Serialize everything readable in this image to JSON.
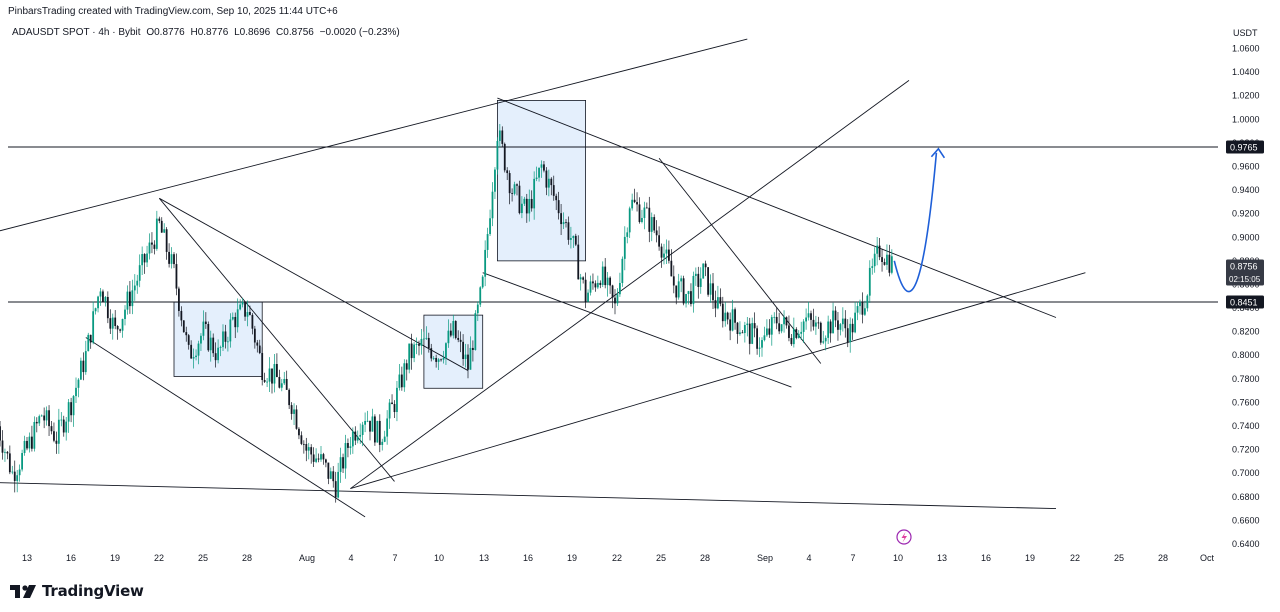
{
  "header": {
    "attribution": "PinbarsTrading created with TradingView.com, Sep 10, 2025 11:44 UTC+6"
  },
  "symbol_info": {
    "title": "ADAUSDT SPOT · 4h · Bybit",
    "open": "O0.8776",
    "high": "H0.8776",
    "low": "L0.8696",
    "close": "C0.8756",
    "change": "−0.0020 (−0.23%)"
  },
  "footer": {
    "brand": "TradingView"
  },
  "colors": {
    "up": "#089981",
    "down": "#131722",
    "box_fill": "#dbeafb",
    "box_stroke": "#131722",
    "arrow": "#1e5fd8",
    "text": "#131722",
    "grid_line": "#e0e3eb"
  },
  "chart_data": {
    "type": "candlestick",
    "ylabel": "USDT",
    "ylim": [
      0.64,
      1.07
    ],
    "y_ticks": [
      "1.0600",
      "1.0400",
      "1.0200",
      "1.0000",
      "0.9800",
      "0.9600",
      "0.9400",
      "0.9200",
      "0.9000",
      "0.8800",
      "0.8600",
      "0.8400",
      "0.8200",
      "0.8000",
      "0.7800",
      "0.7600",
      "0.7400",
      "0.7200",
      "0.7000",
      "0.6800",
      "0.6600",
      "0.6400"
    ],
    "x_ticks": [
      "13",
      "16",
      "19",
      "22",
      "25",
      "28",
      "Aug",
      "4",
      "7",
      "10",
      "13",
      "16",
      "19",
      "22",
      "25",
      "28",
      "Sep",
      "4",
      "7",
      "10",
      "13",
      "16",
      "19",
      "22",
      "25",
      "28",
      "Oct"
    ],
    "price_labels": [
      {
        "value": 0.9765,
        "text": "0.9765",
        "kind": "level"
      },
      {
        "value": 0.8756,
        "text": "0.8756",
        "sub": "02:15:05",
        "kind": "last"
      },
      {
        "value": 0.8451,
        "text": "0.8451",
        "kind": "level"
      }
    ],
    "horizontal_levels": [
      0.9765,
      0.8451
    ],
    "price_path": [
      [
        "Jul 11",
        0.74
      ],
      [
        "Jul 12",
        0.7
      ],
      [
        "Jul 13",
        0.72
      ],
      [
        "Jul 14",
        0.75
      ],
      [
        "Jul 15",
        0.73
      ],
      [
        "Jul 16",
        0.76
      ],
      [
        "Jul 17",
        0.8
      ],
      [
        "Jul 18",
        0.86
      ],
      [
        "Jul 19",
        0.82
      ],
      [
        "Jul 20",
        0.85
      ],
      [
        "Jul 21",
        0.88
      ],
      [
        "Jul 22",
        0.91
      ],
      [
        "Jul 23",
        0.87
      ],
      [
        "Jul 24",
        0.8
      ],
      [
        "Jul 25",
        0.82
      ],
      [
        "Jul 26",
        0.8
      ],
      [
        "Jul 27",
        0.83
      ],
      [
        "Jul 28",
        0.84
      ],
      [
        "Jul 29",
        0.79
      ],
      [
        "Jul 30",
        0.78
      ],
      [
        "Jul 31",
        0.76
      ],
      [
        "Aug 1",
        0.72
      ],
      [
        "Aug 2",
        0.71
      ],
      [
        "Aug 3",
        0.69
      ],
      [
        "Aug 4",
        0.73
      ],
      [
        "Aug 5",
        0.75
      ],
      [
        "Aug 6",
        0.73
      ],
      [
        "Aug 7",
        0.76
      ],
      [
        "Aug 8",
        0.8
      ],
      [
        "Aug 9",
        0.81
      ],
      [
        "Aug 10",
        0.8
      ],
      [
        "Aug 11",
        0.82
      ],
      [
        "Aug 12",
        0.79
      ],
      [
        "Aug 13",
        0.86
      ],
      [
        "Aug 14",
        0.99
      ],
      [
        "Aug 15",
        0.94
      ],
      [
        "Aug 16",
        0.92
      ],
      [
        "Aug 17",
        0.96
      ],
      [
        "Aug 18",
        0.93
      ],
      [
        "Aug 19",
        0.9
      ],
      [
        "Aug 20",
        0.85
      ],
      [
        "Aug 21",
        0.87
      ],
      [
        "Aug 22",
        0.84
      ],
      [
        "Aug 23",
        0.93
      ],
      [
        "Aug 24",
        0.92
      ],
      [
        "Aug 25",
        0.9
      ],
      [
        "Aug 26",
        0.86
      ],
      [
        "Aug 27",
        0.85
      ],
      [
        "Aug 28",
        0.87
      ],
      [
        "Aug 29",
        0.84
      ],
      [
        "Aug 30",
        0.83
      ],
      [
        "Aug 31",
        0.82
      ],
      [
        "Sep 1",
        0.81
      ],
      [
        "Sep 2",
        0.83
      ],
      [
        "Sep 3",
        0.82
      ],
      [
        "Sep 4",
        0.83
      ],
      [
        "Sep 5",
        0.82
      ],
      [
        "Sep 6",
        0.83
      ],
      [
        "Sep 7",
        0.82
      ],
      [
        "Sep 8",
        0.85
      ],
      [
        "Sep 9",
        0.89
      ],
      [
        "Sep 10",
        0.8756
      ]
    ],
    "trend_lines": [
      {
        "from": [
          "Jul 11",
          0.905
        ],
        "to": [
          "Aug 31",
          1.068
        ]
      },
      {
        "from": [
          "Jul 11",
          0.692
        ],
        "to": [
          "Sep 21",
          0.67
        ]
      },
      {
        "from": [
          "Aug 4",
          0.687
        ],
        "to": [
          "Sep 23",
          0.87
        ]
      },
      {
        "from": [
          "Aug 4",
          0.687
        ],
        "to": [
          "Sep 11",
          1.033
        ]
      },
      {
        "from": [
          "Jul 22",
          0.933
        ],
        "to": [
          "Aug 12",
          0.787
        ]
      },
      {
        "from": [
          "Jul 22",
          0.933
        ],
        "to": [
          "Aug 7",
          0.693
        ]
      },
      {
        "from": [
          "Jul 17",
          0.815
        ],
        "to": [
          "Aug 5",
          0.663
        ]
      },
      {
        "from": [
          "Aug 14",
          1.018
        ],
        "to": [
          "Sep 21",
          0.832
        ]
      },
      {
        "from": [
          "Aug 13",
          0.87
        ],
        "to": [
          "Sep 3",
          0.773
        ]
      },
      {
        "from": [
          "Aug 25",
          0.967
        ],
        "to": [
          "Sep 5",
          0.793
        ]
      }
    ],
    "range_boxes": [
      {
        "x_from": "Jul 23",
        "x_to": "Jul 29",
        "y_low": 0.782,
        "y_high": 0.845
      },
      {
        "x_from": "Aug 9",
        "x_to": "Aug 13",
        "y_low": 0.772,
        "y_high": 0.834
      },
      {
        "x_from": "Aug 14",
        "x_to": "Aug 20",
        "y_low": 0.88,
        "y_high": 1.016
      }
    ],
    "projection_arrow": {
      "path": [
        [
          "Sep 10",
          0.88
        ],
        [
          "Sep 11",
          0.845
        ],
        [
          "Sep 12",
          0.86
        ],
        [
          "Sep 13",
          0.975
        ]
      ]
    }
  }
}
